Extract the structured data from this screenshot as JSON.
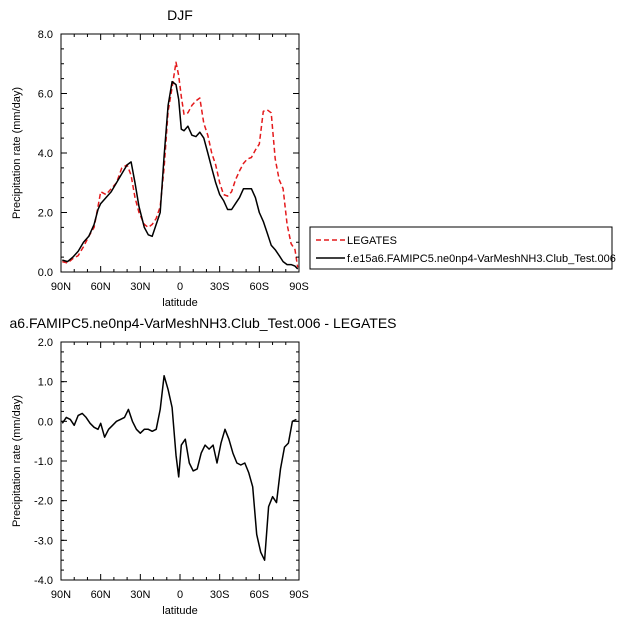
{
  "chart_data": [
    {
      "type": "line",
      "title": "DJF",
      "xlabel": "latitude",
      "ylabel": "Precipitation rate (mm/day)",
      "xlim": [
        90,
        -90
      ],
      "ylim": [
        0,
        8
      ],
      "xticks": [
        90,
        60,
        30,
        0,
        -30,
        -60,
        -90
      ],
      "xticklabels": [
        "90N",
        "60N",
        "30N",
        "0",
        "30S",
        "60S",
        "90S"
      ],
      "yticks": [
        0,
        2,
        4,
        6,
        8
      ],
      "yticklabels": [
        "0.0",
        "2.0",
        "4.0",
        "6.0",
        "8.0"
      ],
      "legend_position": "right",
      "series": [
        {
          "name": "LEGATES",
          "color": "#e41a1c",
          "dash": "dashed",
          "x": [
            89,
            85,
            81,
            77,
            73,
            69,
            65,
            62,
            60,
            56,
            52,
            48,
            44,
            40,
            37,
            34,
            31,
            27,
            24,
            21,
            18,
            15,
            12,
            9,
            6,
            3,
            1,
            -1,
            -3,
            -6,
            -9,
            -12,
            -15,
            -18,
            -21,
            -24,
            -27,
            -30,
            -33,
            -36,
            -39,
            -42,
            -45,
            -48,
            -51,
            -54,
            -57,
            -60,
            -63,
            -66,
            -69,
            -72,
            -75,
            -78,
            -81,
            -84,
            -87,
            -89
          ],
          "y": [
            0.35,
            0.3,
            0.45,
            0.55,
            0.85,
            1.2,
            1.5,
            2.2,
            2.7,
            2.6,
            2.8,
            3.0,
            3.5,
            3.6,
            3.25,
            2.5,
            2.0,
            1.6,
            1.5,
            1.6,
            1.8,
            2.2,
            3.5,
            5.4,
            6.2,
            7.05,
            6.6,
            5.9,
            5.3,
            5.35,
            5.6,
            5.75,
            5.85,
            5.0,
            4.6,
            4.0,
            3.6,
            3.0,
            2.6,
            2.55,
            2.7,
            3.1,
            3.4,
            3.65,
            3.8,
            3.85,
            4.1,
            4.3,
            5.4,
            5.45,
            5.35,
            3.8,
            3.1,
            2.8,
            1.6,
            0.95,
            0.75,
            0.15
          ]
        },
        {
          "name": "f.e15a6.FAMIPC5.ne0np4-VarMeshNH3.Club_Test.006",
          "color": "#000000",
          "dash": "solid",
          "x": [
            89,
            85,
            81,
            77,
            73,
            69,
            65,
            62,
            60,
            56,
            52,
            48,
            44,
            40,
            37,
            34,
            31,
            27,
            24,
            21,
            18,
            15,
            12,
            9,
            6,
            3,
            1,
            -1,
            -3,
            -6,
            -9,
            -12,
            -15,
            -18,
            -21,
            -24,
            -27,
            -30,
            -33,
            -36,
            -39,
            -42,
            -45,
            -48,
            -51,
            -54,
            -57,
            -60,
            -63,
            -66,
            -69,
            -72,
            -75,
            -78,
            -81,
            -84,
            -87,
            -89
          ],
          "y": [
            0.4,
            0.35,
            0.5,
            0.7,
            1.0,
            1.2,
            1.6,
            2.1,
            2.3,
            2.5,
            2.7,
            3.0,
            3.3,
            3.6,
            3.7,
            3.0,
            2.2,
            1.5,
            1.25,
            1.2,
            1.6,
            2.0,
            3.9,
            5.6,
            6.4,
            6.3,
            5.8,
            4.8,
            4.75,
            4.9,
            4.6,
            4.55,
            4.7,
            4.5,
            4.0,
            3.5,
            3.0,
            2.6,
            2.4,
            2.1,
            2.1,
            2.3,
            2.5,
            2.8,
            2.8,
            2.8,
            2.5,
            2.0,
            1.7,
            1.3,
            0.9,
            0.75,
            0.55,
            0.35,
            0.25,
            0.25,
            0.2,
            0.1
          ]
        }
      ]
    },
    {
      "type": "line",
      "title": "a6.FAMIPC5.ne0np4-VarMeshNH3.Club_Test.006 - LEGATES",
      "xlabel": "latitude",
      "ylabel": "Precipitation rate (mm/day)",
      "xlim": [
        90,
        -90
      ],
      "ylim": [
        -4,
        2
      ],
      "xticks": [
        90,
        60,
        30,
        0,
        -30,
        -60,
        -90
      ],
      "xticklabels": [
        "90N",
        "60N",
        "30N",
        "0",
        "30S",
        "60S",
        "90S"
      ],
      "yticks": [
        -4,
        -3,
        -2,
        -1,
        0,
        1,
        2
      ],
      "yticklabels": [
        "-4.0",
        "-3.0",
        "-2.0",
        "-1.0",
        "0.0",
        "1.0",
        "2.0"
      ],
      "series": [
        {
          "color": "#000000",
          "dash": "solid",
          "x": [
            89,
            86,
            83,
            80,
            77,
            74,
            71,
            68,
            65,
            62,
            60,
            57,
            54,
            51,
            48,
            45,
            42,
            39,
            36,
            33,
            30,
            27,
            24,
            21,
            18,
            15,
            12,
            9,
            6,
            3,
            1,
            -1,
            -4,
            -7,
            -10,
            -13,
            -16,
            -19,
            -22,
            -25,
            -28,
            -31,
            -34,
            -37,
            -40,
            -43,
            -46,
            -49,
            -52,
            -55,
            -58,
            -61,
            -64,
            -67,
            -70,
            -73,
            -76,
            -79,
            -82,
            -85,
            -88
          ],
          "y": [
            -0.05,
            0.1,
            0.05,
            -0.1,
            0.15,
            0.2,
            0.1,
            -0.05,
            -0.15,
            -0.2,
            -0.05,
            -0.4,
            -0.2,
            -0.1,
            0.0,
            0.05,
            0.1,
            0.3,
            0.0,
            -0.2,
            -0.3,
            -0.2,
            -0.2,
            -0.25,
            -0.2,
            0.3,
            1.15,
            0.8,
            0.35,
            -0.85,
            -1.4,
            -0.6,
            -0.45,
            -1.05,
            -1.25,
            -1.2,
            -0.8,
            -0.6,
            -0.7,
            -0.6,
            -1.05,
            -0.55,
            -0.2,
            -0.45,
            -0.8,
            -1.05,
            -1.1,
            -1.05,
            -1.3,
            -1.65,
            -2.85,
            -3.3,
            -3.5,
            -2.15,
            -1.9,
            -2.05,
            -1.2,
            -0.65,
            -0.55,
            0.0,
            0.05
          ]
        }
      ]
    }
  ]
}
